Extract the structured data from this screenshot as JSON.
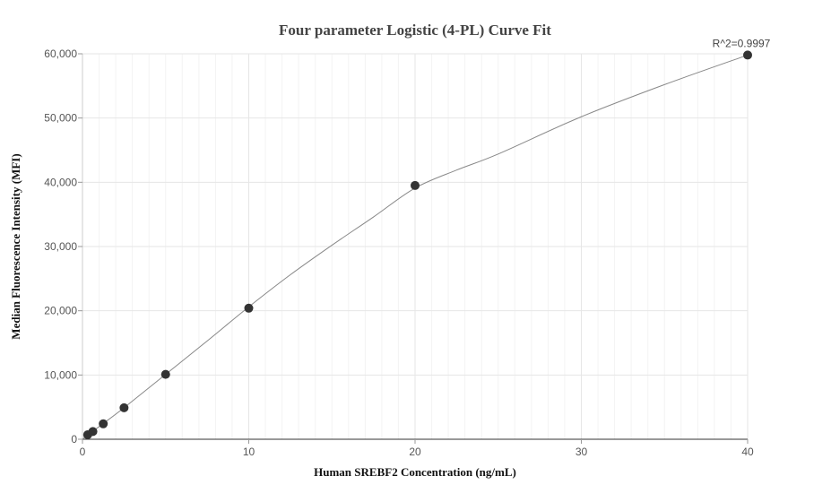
{
  "chart_data": {
    "type": "scatter",
    "title": "Four parameter Logistic (4-PL) Curve Fit",
    "xlabel": "Human SREBF2 Concentration (ng/mL)",
    "ylabel": "Median Fluorescence Intensity (MFI)",
    "xlim": [
      0,
      40
    ],
    "ylim": [
      0,
      60000
    ],
    "x_ticks": [
      0,
      10,
      20,
      30,
      40
    ],
    "y_ticks": [
      0,
      10000,
      20000,
      30000,
      40000,
      50000,
      60000
    ],
    "x_tick_labels": [
      "0",
      "10",
      "20",
      "30",
      "40"
    ],
    "y_tick_labels": [
      "0",
      "10,000",
      "20,000",
      "30,000",
      "40,000",
      "50,000",
      "60,000"
    ],
    "grid": true,
    "annotation": "R^2=0.9997",
    "series": [
      {
        "points": [
          {
            "x": 0.3125,
            "y": 700
          },
          {
            "x": 0.625,
            "y": 1200
          },
          {
            "x": 1.25,
            "y": 2400
          },
          {
            "x": 2.5,
            "y": 4900
          },
          {
            "x": 5,
            "y": 10100
          },
          {
            "x": 10,
            "y": 20400
          },
          {
            "x": 20,
            "y": 39500
          },
          {
            "x": 40,
            "y": 59800
          }
        ]
      }
    ],
    "fit_curve": [
      {
        "x": 0,
        "y": 0
      },
      {
        "x": 0.3125,
        "y": 650
      },
      {
        "x": 0.625,
        "y": 1250
      },
      {
        "x": 1.25,
        "y": 2450
      },
      {
        "x": 2.5,
        "y": 4900
      },
      {
        "x": 5,
        "y": 10100
      },
      {
        "x": 7.5,
        "y": 15300
      },
      {
        "x": 10,
        "y": 20600
      },
      {
        "x": 12.5,
        "y": 25600
      },
      {
        "x": 15,
        "y": 30200
      },
      {
        "x": 17.5,
        "y": 34600
      },
      {
        "x": 20,
        "y": 39100
      },
      {
        "x": 22.5,
        "y": 41900
      },
      {
        "x": 25,
        "y": 44400
      },
      {
        "x": 30,
        "y": 50200
      },
      {
        "x": 35,
        "y": 55200
      },
      {
        "x": 40,
        "y": 59800
      }
    ],
    "colors": {
      "points": "#333333",
      "curve": "#888888",
      "grid": "#e6e6e6",
      "axis": "#333333"
    }
  }
}
